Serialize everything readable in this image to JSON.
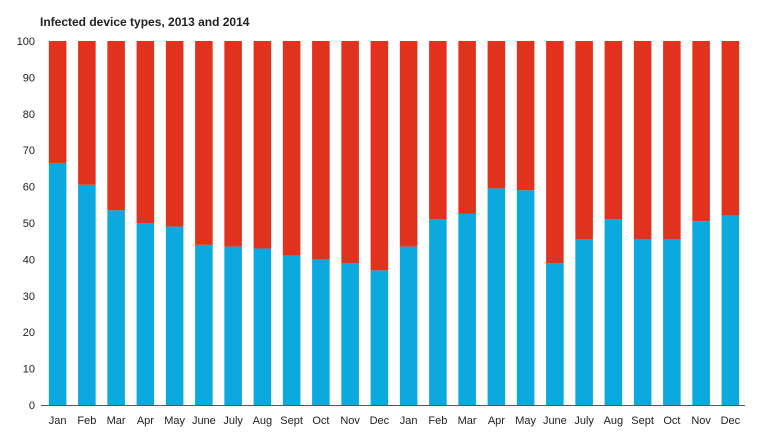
{
  "chart_data": {
    "type": "bar",
    "stacked": true,
    "title": "Infected device types, 2013 and 2014",
    "xlabel": "",
    "ylabel": "",
    "ylim": [
      0,
      100
    ],
    "yticks": [
      0,
      10,
      20,
      30,
      40,
      50,
      60,
      70,
      80,
      90,
      100
    ],
    "grid": false,
    "legend": "none",
    "categories": [
      "Jan",
      "Feb",
      "Mar",
      "Apr",
      "May",
      "June",
      "July",
      "Aug",
      "Sept",
      "Oct",
      "Nov",
      "Dec",
      "Jan",
      "Feb",
      "Mar",
      "Apr",
      "May",
      "June",
      "July",
      "Aug",
      "Sept",
      "Oct",
      "Nov",
      "Dec"
    ],
    "series": [
      {
        "color": "#0ba9dd",
        "values": [
          66.5,
          60.5,
          53.5,
          50,
          49,
          44,
          43.5,
          43,
          41,
          40,
          39,
          37,
          43.5,
          51,
          52.5,
          59.5,
          59,
          39,
          45.5,
          51,
          45.5,
          45.5,
          50.5,
          52
        ]
      },
      {
        "color": "#e0321c",
        "values": [
          33.5,
          39.5,
          46.5,
          50,
          51,
          56,
          56.5,
          57,
          59,
          60,
          61,
          63,
          56.5,
          49,
          47.5,
          40.5,
          41,
          61,
          54.5,
          49,
          54.5,
          54.5,
          49.5,
          48
        ]
      }
    ]
  }
}
